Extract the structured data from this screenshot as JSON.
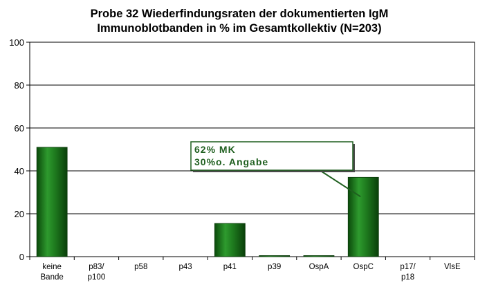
{
  "chart_data": {
    "type": "bar",
    "title": [
      "Probe 32 Wiederfindungsraten der dokumentierten IgM",
      "Immunoblotbanden  in % im Gesamtkollektiv (N=203)"
    ],
    "categories": [
      [
        "keine",
        "Bande"
      ],
      [
        "p83/",
        "p100"
      ],
      [
        "p58"
      ],
      [
        "p43"
      ],
      [
        "p41"
      ],
      [
        "p39"
      ],
      [
        "OspA"
      ],
      [
        "OspC"
      ],
      [
        "p17/",
        "p18"
      ],
      [
        "VlsE"
      ]
    ],
    "values": [
      51,
      0,
      0,
      0,
      15.5,
      0.5,
      0.5,
      37,
      0,
      0
    ],
    "ylim": [
      0,
      100
    ],
    "yticks": [
      0,
      20,
      40,
      60,
      80,
      100
    ],
    "grid": true,
    "xlabel": "",
    "ylabel": "",
    "bar_color": "#1e7a1e",
    "annotation": {
      "lines": [
        "62% MK",
        "30%o. Angabe"
      ],
      "target_category": "OspC",
      "text_color": "#1f5f1f"
    }
  }
}
